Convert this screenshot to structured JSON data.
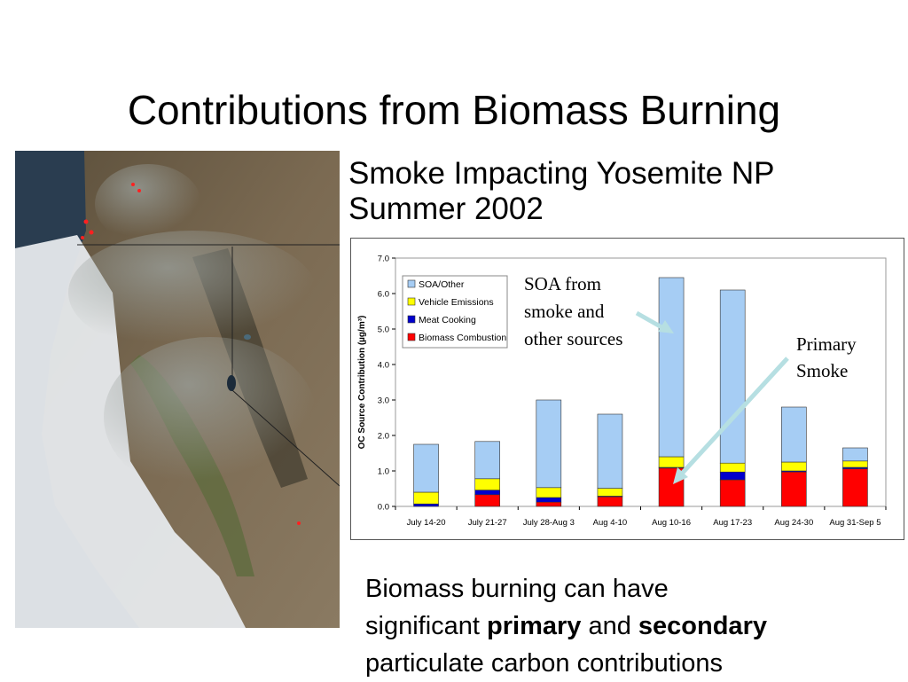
{
  "slide": {
    "title": "Contributions from Biomass Burning",
    "subtitle_line1": "Smoke Impacting Yosemite NP",
    "subtitle_line2": "Summer 2002"
  },
  "caption": {
    "part1": "Biomass burning can have",
    "part2": "significant ",
    "bold1": "primary",
    "part3": " and ",
    "bold2": "secondary",
    "part4": "particulate carbon contributions"
  },
  "annotations": {
    "soa_line1": "SOA from",
    "soa_line2": "smoke and",
    "soa_line3": "other sources",
    "primary_line1": "Primary",
    "primary_line2": "Smoke"
  },
  "colors": {
    "soa": "#a6cdf4",
    "vehicle": "#ffff00",
    "meat": "#0000cc",
    "biomass": "#ff0000",
    "arrow": "#b6dfe2"
  },
  "chart_data": {
    "type": "bar",
    "stacked": true,
    "title": "",
    "xlabel": "",
    "ylabel": "OC Source Contribution (µg/m³)",
    "ylim": [
      0,
      7
    ],
    "yticks": [
      "0.0",
      "1.0",
      "2.0",
      "3.0",
      "4.0",
      "5.0",
      "6.0",
      "7.0"
    ],
    "grid": false,
    "legend_position": "top-left",
    "categories": [
      "July 14-20",
      "July 21-27",
      "July 28-Aug 3",
      "Aug 4-10",
      "Aug 10-16",
      "Aug 17-23",
      "Aug 24-30",
      "Aug 31-Sep 5"
    ],
    "series": [
      {
        "name": "Biomass Combustion",
        "color": "#ff0000",
        "values": [
          0.0,
          0.33,
          0.12,
          0.27,
          1.08,
          0.75,
          0.97,
          1.06
        ]
      },
      {
        "name": "Meat Cooking",
        "color": "#0000cc",
        "values": [
          0.07,
          0.13,
          0.13,
          0.02,
          0.02,
          0.22,
          0.03,
          0.04
        ]
      },
      {
        "name": "Vehicle Emissions",
        "color": "#ffff00",
        "values": [
          0.33,
          0.32,
          0.28,
          0.22,
          0.3,
          0.25,
          0.25,
          0.18
        ]
      },
      {
        "name": "SOA/Other",
        "color": "#a6cdf4",
        "values": [
          1.35,
          1.05,
          2.47,
          2.09,
          5.05,
          4.88,
          1.55,
          0.37
        ]
      }
    ],
    "legend_order": [
      "SOA/Other",
      "Vehicle Emissions",
      "Meat Cooking",
      "Biomass Combustion"
    ]
  }
}
